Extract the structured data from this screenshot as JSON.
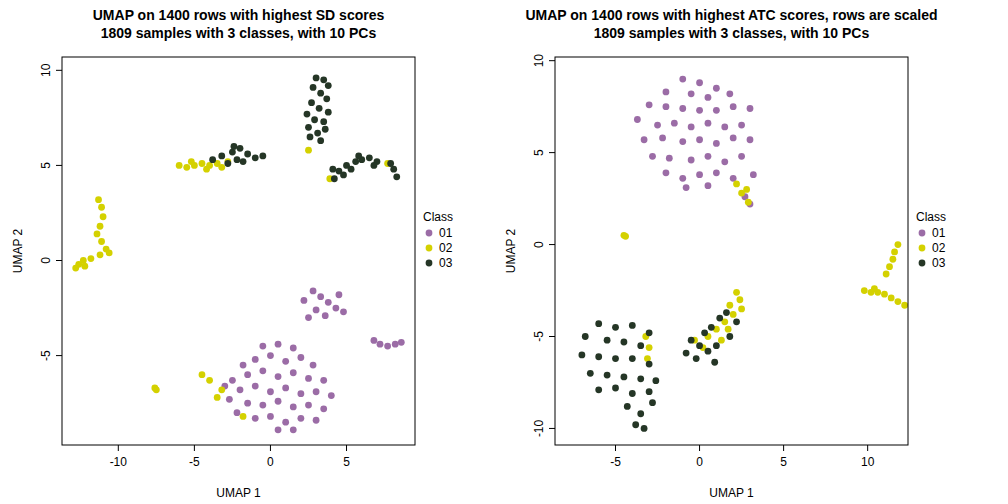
{
  "chart_data": [
    {
      "type": "scatter",
      "title": "UMAP on 1400 rows with highest SD scores",
      "subtitle": "1809 samples with 3 classes, with 10 PCs",
      "x_label": "UMAP 1",
      "y_label": "UMAP 2",
      "legend_title": "Class",
      "xlim": [
        -13.7,
        9.5
      ],
      "ylim": [
        -9.7,
        10.7
      ],
      "xticks": [
        -10,
        -5,
        0,
        5
      ],
      "yticks": [
        -5,
        0,
        5,
        10
      ],
      "grid": false,
      "legend": "right",
      "marker": "circle",
      "series": [
        {
          "name": "01",
          "color": "#9b6ca6",
          "x": [
            -0.5,
            0.5,
            1.5,
            -1,
            0,
            1,
            2,
            2.8,
            -1.5,
            -0.5,
            0.5,
            1.5,
            2.5,
            3.5,
            -2,
            -1,
            0,
            1,
            2,
            3,
            4,
            -1.5,
            -0.5,
            0.5,
            1.5,
            2.5,
            3.5,
            -1,
            0,
            1,
            2,
            3,
            0.5,
            1.5,
            -2.5,
            -3,
            -2.7,
            -2.2,
            -1.8,
            2.2,
            2.8,
            3.3,
            3.8,
            4.3,
            4.8,
            3,
            3.6,
            2.5,
            4.5,
            6.8,
            7.2,
            7.7,
            8.2,
            8.6
          ],
          "values": [
            -4.5,
            -4.4,
            -4.6,
            -5.2,
            -5.0,
            -5.3,
            -5.1,
            -5.5,
            -6,
            -5.8,
            -6.1,
            -5.9,
            -6.2,
            -6.3,
            -6.8,
            -6.6,
            -6.9,
            -6.7,
            -7,
            -6.9,
            -7.1,
            -7.5,
            -7.6,
            -7.4,
            -7.7,
            -7.6,
            -7.8,
            -8.3,
            -8.2,
            -8.5,
            -8.3,
            -8.4,
            -8.9,
            -8.9,
            -6.3,
            -6.6,
            -7.3,
            -8,
            -5.5,
            -2.1,
            -1.6,
            -1.9,
            -2.2,
            -2.5,
            -2.7,
            -2.6,
            -2.9,
            -3,
            -1.8,
            -4.2,
            -4.4,
            -4.5,
            -4.4,
            -4.3
          ]
        },
        {
          "name": "02",
          "color": "#d4d100",
          "x": [
            -11.3,
            -11.1,
            -11,
            -11.2,
            -11.4,
            -11.1,
            -10.8,
            -11.2,
            -11.8,
            -12.3,
            -12.6,
            -12.8,
            -12.2,
            -10.6,
            -7.6,
            -7.5,
            -6,
            -5.5,
            -5,
            -4.5,
            -4,
            -3.5,
            -5.2,
            -4.2,
            -3.2,
            -2.8,
            -4.5,
            -4,
            -3.2,
            -3.5,
            -1.8,
            2.5,
            7.7,
            3.9
          ],
          "values": [
            3.2,
            2.8,
            2.3,
            1.8,
            1.4,
            1,
            0.6,
            0.3,
            0.1,
            0,
            -0.2,
            -0.4,
            -0.3,
            0.4,
            -6.7,
            -6.8,
            5,
            4.9,
            5,
            5.1,
            5,
            5.1,
            5.2,
            4.8,
            4.9,
            5.2,
            -6,
            -6.3,
            -6.8,
            -7.2,
            -8.2,
            5.8,
            5.1,
            4.3
          ]
        },
        {
          "name": "03",
          "color": "#253626",
          "x": [
            -3.2,
            -2.5,
            -2,
            -1.5,
            -1,
            -0.5,
            -2.8,
            -2.2,
            -1.8,
            -3.8,
            -2.4,
            3,
            3.5,
            3.8,
            2.8,
            3.3,
            3.7,
            2.7,
            3.2,
            3.8,
            2.4,
            2.9,
            3.5,
            2.5,
            3.1,
            3.6,
            3.3,
            2.6,
            4.2,
            4.5,
            5,
            5.3,
            5.6,
            6,
            6.5,
            7,
            4.8,
            5.8,
            6.8,
            4.1,
            7.9,
            8.1,
            8.3
          ],
          "values": [
            5.5,
            5.7,
            5.9,
            5.6,
            5.4,
            5.5,
            5.1,
            5.3,
            5.2,
            5.3,
            6,
            9.6,
            9.5,
            9.2,
            9.1,
            8.8,
            8.5,
            8.3,
            8,
            7.8,
            7.7,
            7.4,
            7.3,
            7,
            6.7,
            6.9,
            6.3,
            6.5,
            4.3,
            4.7,
            5,
            4.8,
            5.2,
            5.3,
            5.4,
            5.2,
            4.5,
            5.5,
            5.0,
            4.8,
            5.1,
            4.8,
            4.4
          ]
        }
      ]
    },
    {
      "type": "scatter",
      "title": "UMAP on 1400 rows with highest ATC scores, rows are scaled",
      "subtitle": "1809 samples with 3 classes, with 10 PCs",
      "x_label": "UMAP 1",
      "y_label": "UMAP 2",
      "legend_title": "Class",
      "xlim": [
        -8.6,
        12.4
      ],
      "ylim": [
        -10.9,
        10.2
      ],
      "xticks": [
        -5,
        0,
        5,
        10
      ],
      "yticks": [
        -10,
        -5,
        0,
        5,
        10
      ],
      "grid": false,
      "legend": "right",
      "marker": "circle",
      "series": [
        {
          "name": "01",
          "color": "#9b6ca6",
          "x": [
            -1,
            0,
            1,
            -2,
            -0.5,
            0.5,
            1.8,
            -3,
            -2,
            -1,
            0,
            1,
            2,
            3,
            -3.7,
            -2.5,
            -1.5,
            -0.5,
            0.5,
            1.5,
            2.5,
            -3.3,
            -2.2,
            -1,
            0,
            1,
            2,
            3,
            -2.8,
            -1.8,
            -0.5,
            0.5,
            1.5,
            2.5,
            -2,
            -1,
            0,
            1,
            2,
            0.5,
            -0.8,
            3.2,
            2.7,
            3
          ],
          "values": [
            9,
            8.8,
            8.5,
            8.3,
            8.2,
            8,
            8.2,
            7.6,
            7.5,
            7.4,
            7.3,
            7.3,
            7.5,
            7.4,
            6.8,
            6.5,
            6.6,
            6.4,
            6.6,
            6.4,
            6.5,
            5.7,
            5.8,
            5.6,
            5.7,
            5.5,
            5.8,
            5.7,
            4.8,
            4.7,
            4.6,
            4.8,
            4.5,
            4.8,
            3.9,
            3.6,
            3.8,
            3.9,
            3.6,
            3.2,
            3.1,
            3.8,
            2.6,
            2.2
          ]
        },
        {
          "name": "02",
          "color": "#d4d100",
          "x": [
            11.8,
            11.6,
            11.5,
            11.3,
            11.1,
            9.8,
            10.2,
            10.6,
            11,
            10.4,
            11.4,
            11.8,
            12.2,
            -4.5,
            -4.4,
            2.5,
            2.9,
            2.2,
            2.8,
            2.2,
            2.4,
            1.8,
            2,
            1.5,
            1,
            0.5,
            1.3,
            0.2,
            -0.3,
            2.5,
            1.7,
            -3.2,
            -3,
            -3.1
          ],
          "values": [
            0,
            -0.4,
            -0.8,
            -1.2,
            -1.6,
            -2.5,
            -2.6,
            -2.6,
            -2.7,
            -2.4,
            -2.9,
            -3.1,
            -3.3,
            0.5,
            0.45,
            2.8,
            2.3,
            3.3,
            3,
            -2.6,
            -3,
            -3.3,
            -3.8,
            -4.2,
            -4.6,
            -5,
            -5.2,
            -5.6,
            -5.2,
            -3.5,
            -4.6,
            -5,
            -5.6,
            -6.2
          ]
        },
        {
          "name": "03",
          "color": "#253626",
          "x": [
            -6,
            -5,
            -4,
            -3,
            -6.8,
            -5.5,
            -4.5,
            -3.5,
            -7,
            -6,
            -5,
            -4,
            -3,
            -6.5,
            -5.5,
            -4.5,
            -3.5,
            -2.6,
            -6,
            -5,
            -4,
            -3,
            -4.3,
            -3.5,
            -3.8,
            -3.3,
            -2.8,
            -0.5,
            0,
            0.5,
            1,
            -0.2,
            0.7,
            1.2,
            1.6,
            0.3,
            -0.8,
            0.9,
            2.2,
            1.8
          ],
          "values": [
            -4.3,
            -4.5,
            -4.4,
            -4.8,
            -5,
            -5.2,
            -5.3,
            -5.5,
            -6,
            -6.1,
            -6.2,
            -6.2,
            -6.5,
            -7,
            -7.1,
            -7.2,
            -7.3,
            -7.4,
            -7.9,
            -7.8,
            -8.1,
            -8,
            -8.8,
            -9.2,
            -9.8,
            -10,
            -8.6,
            -5.2,
            -5.5,
            -5.8,
            -5.5,
            -6.2,
            -4.5,
            -4,
            -3.7,
            -4.8,
            -5.9,
            -6.4,
            -4.2,
            -5
          ]
        }
      ]
    }
  ]
}
